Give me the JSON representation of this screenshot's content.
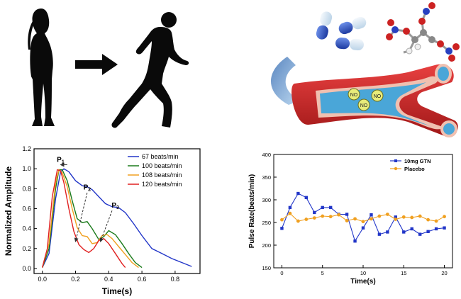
{
  "colors": {
    "blue": "#2236c8",
    "green": "#1a7a1a",
    "orange": "#f0a020",
    "red": "#e02020",
    "vessel_red": "#c81e1e",
    "blood_blue": "#4aa6d8"
  },
  "icons": [
    "standing-person-icon",
    "arrow-right-icon",
    "running-person-icon",
    "capsule-icon",
    "molecule-icon",
    "curved-arrow-icon",
    "blood-vessel-icon"
  ],
  "vessel": {
    "no_labels": [
      "NO",
      "NO",
      "NO"
    ]
  },
  "chart_data": [
    {
      "type": "line",
      "xlabel": "Time(s)",
      "ylabel": "Normalized Amplitude",
      "xlim": [
        -0.05,
        0.95
      ],
      "ylim": [
        -0.05,
        1.2
      ],
      "xticks": [
        "0.0",
        "0.2",
        "0.4",
        "0.6",
        "0.8"
      ],
      "yticks": [
        "0.0",
        "0.2",
        "0.4",
        "0.6",
        "0.8",
        "1.0",
        "1.2"
      ],
      "legend_position": "top-right",
      "annotations": [
        "P1",
        "P2",
        "P3"
      ],
      "series": [
        {
          "name": "67  beats/min",
          "color": "#2236c8",
          "x": [
            0.0,
            0.04,
            0.08,
            0.11,
            0.13,
            0.16,
            0.2,
            0.24,
            0.27,
            0.3,
            0.34,
            0.38,
            0.42,
            0.46,
            0.5,
            0.55,
            0.6,
            0.66,
            0.72,
            0.78,
            0.84,
            0.9
          ],
          "y": [
            0.01,
            0.15,
            0.7,
            0.97,
            1.0,
            0.97,
            0.88,
            0.83,
            0.82,
            0.79,
            0.72,
            0.65,
            0.62,
            0.61,
            0.56,
            0.45,
            0.33,
            0.2,
            0.15,
            0.1,
            0.06,
            0.02
          ]
        },
        {
          "name": "100 beats/min",
          "color": "#1a7a1a",
          "x": [
            0.0,
            0.04,
            0.08,
            0.1,
            0.12,
            0.15,
            0.18,
            0.21,
            0.24,
            0.27,
            0.3,
            0.34,
            0.37,
            0.4,
            0.44,
            0.48,
            0.52,
            0.56,
            0.6
          ],
          "y": [
            0.01,
            0.2,
            0.8,
            0.99,
            0.99,
            0.88,
            0.68,
            0.5,
            0.46,
            0.47,
            0.4,
            0.29,
            0.32,
            0.38,
            0.34,
            0.25,
            0.15,
            0.06,
            0.01
          ]
        },
        {
          "name": "108 beats/min",
          "color": "#f0a020",
          "x": [
            0.0,
            0.04,
            0.08,
            0.1,
            0.12,
            0.15,
            0.18,
            0.21,
            0.24,
            0.27,
            0.3,
            0.33,
            0.36,
            0.39,
            0.42,
            0.46,
            0.5,
            0.54,
            0.58
          ],
          "y": [
            0.01,
            0.25,
            0.86,
            0.99,
            0.96,
            0.82,
            0.6,
            0.41,
            0.33,
            0.32,
            0.25,
            0.26,
            0.33,
            0.34,
            0.3,
            0.22,
            0.14,
            0.06,
            0.01
          ]
        },
        {
          "name": "120 beats/min",
          "color": "#e02020",
          "x": [
            0.0,
            0.03,
            0.06,
            0.09,
            0.11,
            0.13,
            0.16,
            0.19,
            0.22,
            0.25,
            0.28,
            0.31,
            0.34,
            0.37,
            0.4,
            0.44,
            0.48,
            0.5
          ],
          "y": [
            0.01,
            0.2,
            0.72,
            0.99,
            0.98,
            0.86,
            0.6,
            0.37,
            0.24,
            0.19,
            0.16,
            0.2,
            0.28,
            0.3,
            0.25,
            0.15,
            0.05,
            0.01
          ]
        }
      ],
      "arrows": [
        {
          "from": [
            0.27,
            0.76
          ],
          "to": [
            0.2,
            0.27
          ]
        },
        {
          "from": [
            0.42,
            0.58
          ],
          "to": [
            0.35,
            0.27
          ]
        }
      ]
    },
    {
      "type": "line",
      "xlabel": "Time(s)",
      "ylabel": "Pulse Rate(beats/min)",
      "xlim": [
        -1,
        21
      ],
      "ylim": [
        150,
        400
      ],
      "xticks": [
        "0",
        "5",
        "10",
        "15",
        "20"
      ],
      "yticks": [
        "150",
        "200",
        "250",
        "300",
        "350",
        "400"
      ],
      "legend_position": "top-right",
      "series": [
        {
          "name": "10mg GTN",
          "color": "#2236c8",
          "marker": "square",
          "x": [
            0,
            1,
            2,
            3,
            4,
            5,
            6,
            7,
            8,
            9,
            10,
            11,
            12,
            13,
            14,
            15,
            16,
            17,
            18,
            19,
            20
          ],
          "y": [
            237,
            283,
            314,
            305,
            272,
            283,
            283,
            268,
            268,
            209,
            238,
            267,
            224,
            229,
            262,
            229,
            236,
            224,
            230,
            236,
            238
          ]
        },
        {
          "name": "Placebo",
          "color": "#f0a020",
          "marker": "circle",
          "x": [
            0,
            1,
            2,
            3,
            4,
            5,
            6,
            7,
            8,
            9,
            10,
            11,
            12,
            13,
            14,
            15,
            16,
            17,
            18,
            19,
            20
          ],
          "y": [
            256,
            270,
            253,
            257,
            260,
            264,
            263,
            267,
            254,
            258,
            252,
            258,
            264,
            268,
            257,
            262,
            261,
            264,
            256,
            253,
            263
          ]
        }
      ]
    }
  ]
}
